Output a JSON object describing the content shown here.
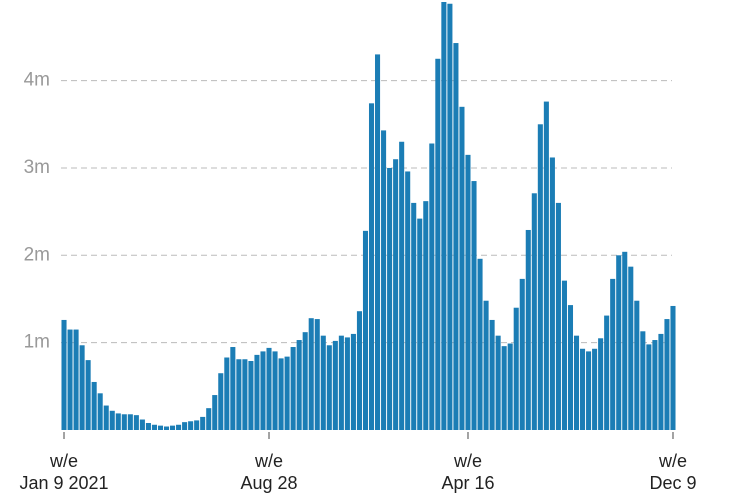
{
  "chart_data": {
    "type": "bar",
    "categories": [
      "w/e\nJan 9 2021",
      null,
      null,
      null,
      null,
      null,
      null,
      null,
      null,
      null,
      null,
      null,
      null,
      null,
      null,
      null,
      null,
      null,
      null,
      null,
      null,
      null,
      null,
      null,
      null,
      null,
      null,
      null,
      null,
      null,
      null,
      null,
      null,
      null,
      "w/e\nAug 28",
      null,
      null,
      null,
      null,
      null,
      null,
      null,
      null,
      null,
      null,
      null,
      null,
      null,
      null,
      null,
      null,
      null,
      null,
      null,
      null,
      null,
      null,
      null,
      null,
      null,
      null,
      null,
      null,
      null,
      null,
      null,
      null,
      "w/e\nApr 16",
      null,
      null,
      null,
      null,
      null,
      null,
      null,
      null,
      null,
      null,
      null,
      null,
      null,
      null,
      null,
      null,
      null,
      null,
      null,
      null,
      null,
      null,
      null,
      null,
      null,
      null,
      null,
      null,
      null,
      null,
      null,
      null,
      null,
      "w/e\nDec 9"
    ],
    "values": [
      1260000,
      1150000,
      1150000,
      970000,
      800000,
      550000,
      420000,
      280000,
      220000,
      190000,
      180000,
      180000,
      170000,
      120000,
      80000,
      60000,
      50000,
      40000,
      50000,
      60000,
      90000,
      100000,
      110000,
      150000,
      250000,
      400000,
      650000,
      830000,
      950000,
      810000,
      810000,
      790000,
      860000,
      900000,
      940000,
      900000,
      820000,
      840000,
      950000,
      1030000,
      1120000,
      1280000,
      1270000,
      1080000,
      970000,
      1020000,
      1080000,
      1060000,
      1100000,
      1360000,
      2280000,
      3740000,
      4300000,
      3430000,
      3000000,
      3100000,
      3300000,
      2960000,
      2600000,
      2420000,
      2620000,
      3280000,
      4250000,
      4900000,
      4880000,
      4430000,
      3700000,
      3150000,
      2850000,
      1960000,
      1480000,
      1260000,
      1080000,
      960000,
      990000,
      1400000,
      1730000,
      2290000,
      2710000,
      3500000,
      3760000,
      3120000,
      2600000,
      1710000,
      1430000,
      1080000,
      930000,
      900000,
      930000,
      1050000,
      1310000,
      1730000,
      2000000,
      2040000,
      1870000,
      1480000,
      1130000,
      980000,
      1030000,
      1100000,
      1270000,
      1420000
    ],
    "color": "#1b7db5",
    "ylim": [
      0,
      4900000
    ],
    "yticks": [
      {
        "value": 1000000,
        "label": "1m"
      },
      {
        "value": 2000000,
        "label": "2m"
      },
      {
        "value": 3000000,
        "label": "3m"
      },
      {
        "value": 4000000,
        "label": "4m"
      }
    ],
    "grid": true
  }
}
